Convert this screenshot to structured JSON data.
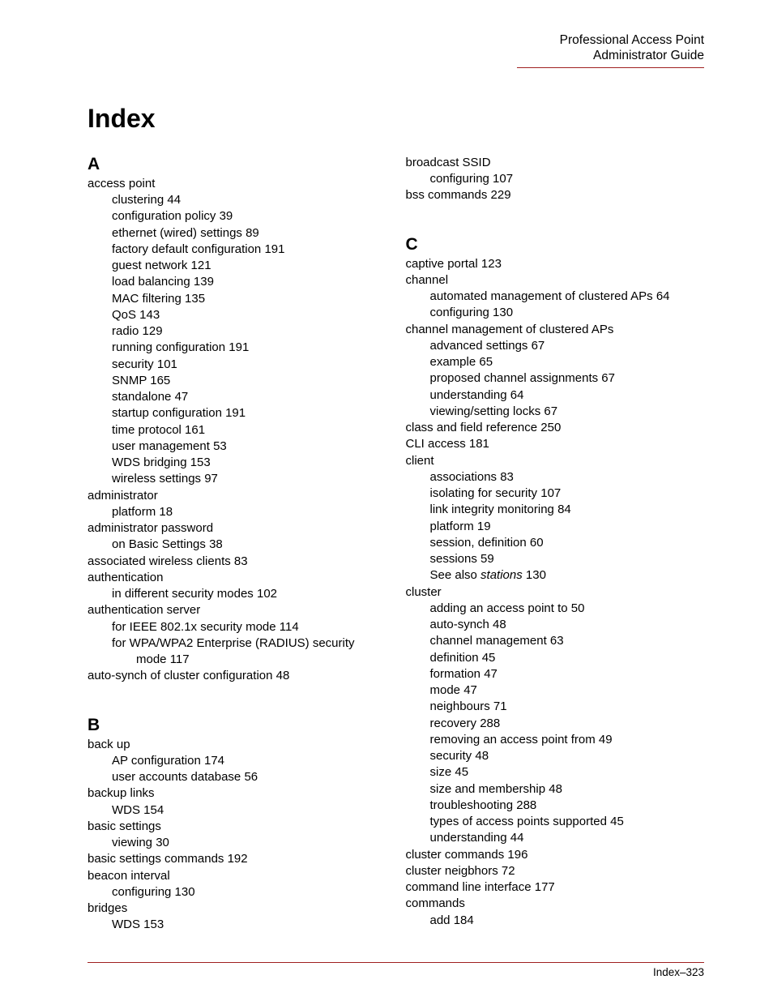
{
  "header": {
    "line1": "Professional Access Point",
    "line2": "Administrator Guide"
  },
  "title": "Index",
  "footer": "Index–323",
  "colors": {
    "rule": "#a02020",
    "text": "#000000",
    "background": "#ffffff"
  },
  "typography": {
    "body_font": "Arial",
    "title_fontsize_pt": 24,
    "letter_fontsize_pt": 16,
    "entry_fontsize_pt": 11,
    "footer_fontsize_pt": 10
  },
  "columns": [
    {
      "items": [
        {
          "type": "letter",
          "text": "A",
          "first": true
        },
        {
          "type": "entry",
          "level": 0,
          "text": "access point"
        },
        {
          "type": "entry",
          "level": 1,
          "text": "clustering",
          "page": "44"
        },
        {
          "type": "entry",
          "level": 1,
          "text": "configuration policy",
          "page": "39"
        },
        {
          "type": "entry",
          "level": 1,
          "text": "ethernet (wired) settings",
          "page": "89"
        },
        {
          "type": "entry",
          "level": 1,
          "text": "factory default configuration",
          "page": "191"
        },
        {
          "type": "entry",
          "level": 1,
          "text": "guest network",
          "page": "121"
        },
        {
          "type": "entry",
          "level": 1,
          "text": "load balancing",
          "page": "139"
        },
        {
          "type": "entry",
          "level": 1,
          "text": "MAC filtering",
          "page": "135"
        },
        {
          "type": "entry",
          "level": 1,
          "text": "QoS",
          "page": "143"
        },
        {
          "type": "entry",
          "level": 1,
          "text": "radio",
          "page": "129"
        },
        {
          "type": "entry",
          "level": 1,
          "text": "running configuration",
          "page": "191"
        },
        {
          "type": "entry",
          "level": 1,
          "text": "security",
          "page": "101"
        },
        {
          "type": "entry",
          "level": 1,
          "text": "SNMP",
          "page": "165"
        },
        {
          "type": "entry",
          "level": 1,
          "text": "standalone",
          "page": "47"
        },
        {
          "type": "entry",
          "level": 1,
          "text": "startup configuration",
          "page": "191"
        },
        {
          "type": "entry",
          "level": 1,
          "text": "time protocol",
          "page": "161"
        },
        {
          "type": "entry",
          "level": 1,
          "text": "user management",
          "page": "53"
        },
        {
          "type": "entry",
          "level": 1,
          "text": "WDS bridging",
          "page": "153"
        },
        {
          "type": "entry",
          "level": 1,
          "text": "wireless settings",
          "page": "97"
        },
        {
          "type": "entry",
          "level": 0,
          "text": "administrator"
        },
        {
          "type": "entry",
          "level": 1,
          "text": "platform",
          "page": "18"
        },
        {
          "type": "entry",
          "level": 0,
          "text": "administrator password"
        },
        {
          "type": "entry",
          "level": 1,
          "text": "on Basic Settings",
          "page": "38"
        },
        {
          "type": "entry",
          "level": 0,
          "text": "associated wireless clients",
          "page": "83"
        },
        {
          "type": "entry",
          "level": 0,
          "text": "authentication"
        },
        {
          "type": "entry",
          "level": 1,
          "text": "in different security modes",
          "page": "102"
        },
        {
          "type": "entry",
          "level": 0,
          "text": "authentication server"
        },
        {
          "type": "entry",
          "level": 1,
          "text": "for IEEE 802.1x security mode",
          "page": "114"
        },
        {
          "type": "entry",
          "level": 1,
          "text": "for WPA/WPA2 Enterprise (RADIUS) security"
        },
        {
          "type": "entry",
          "level": 2,
          "text": "mode",
          "page": "117"
        },
        {
          "type": "entry",
          "level": 0,
          "text": "auto-synch of cluster configuration",
          "page": "48"
        },
        {
          "type": "spacer"
        },
        {
          "type": "letter",
          "text": "B"
        },
        {
          "type": "entry",
          "level": 0,
          "text": "back up"
        },
        {
          "type": "entry",
          "level": 1,
          "text": "AP configuration",
          "page": "174"
        },
        {
          "type": "entry",
          "level": 1,
          "text": "user accounts database",
          "page": "56"
        },
        {
          "type": "entry",
          "level": 0,
          "text": "backup links"
        },
        {
          "type": "entry",
          "level": 1,
          "text": "WDS",
          "page": "154"
        },
        {
          "type": "entry",
          "level": 0,
          "text": "basic settings"
        },
        {
          "type": "entry",
          "level": 1,
          "text": "viewing",
          "page": "30"
        },
        {
          "type": "entry",
          "level": 0,
          "text": "basic settings commands",
          "page": "192"
        },
        {
          "type": "entry",
          "level": 0,
          "text": "beacon interval"
        },
        {
          "type": "entry",
          "level": 1,
          "text": "configuring",
          "page": "130"
        },
        {
          "type": "entry",
          "level": 0,
          "text": "bridges"
        },
        {
          "type": "entry",
          "level": 1,
          "text": "WDS",
          "page": "153"
        }
      ]
    },
    {
      "items": [
        {
          "type": "entry",
          "level": 0,
          "text": "broadcast SSID"
        },
        {
          "type": "entry",
          "level": 1,
          "text": "configuring",
          "page": "107"
        },
        {
          "type": "entry",
          "level": 0,
          "text": "bss commands",
          "page": "229"
        },
        {
          "type": "spacer"
        },
        {
          "type": "letter",
          "text": "C"
        },
        {
          "type": "entry",
          "level": 0,
          "text": "captive portal",
          "page": "123"
        },
        {
          "type": "entry",
          "level": 0,
          "text": "channel"
        },
        {
          "type": "entry",
          "level": 1,
          "text": "automated management of clustered APs",
          "page": "64"
        },
        {
          "type": "entry",
          "level": 1,
          "text": "configuring",
          "page": "130"
        },
        {
          "type": "entry",
          "level": 0,
          "text": "channel management of clustered APs"
        },
        {
          "type": "entry",
          "level": 1,
          "text": "advanced settings",
          "page": "67"
        },
        {
          "type": "entry",
          "level": 1,
          "text": "example",
          "page": "65"
        },
        {
          "type": "entry",
          "level": 1,
          "text": "proposed channel assignments",
          "page": "67"
        },
        {
          "type": "entry",
          "level": 1,
          "text": "understanding",
          "page": "64"
        },
        {
          "type": "entry",
          "level": 1,
          "text": "viewing/setting locks",
          "page": "67"
        },
        {
          "type": "entry",
          "level": 0,
          "text": "class and field reference",
          "page": "250"
        },
        {
          "type": "entry",
          "level": 0,
          "text": "CLI access",
          "page": "181"
        },
        {
          "type": "entry",
          "level": 0,
          "text": "client"
        },
        {
          "type": "entry",
          "level": 1,
          "text": "associations",
          "page": "83"
        },
        {
          "type": "entry",
          "level": 1,
          "text": "isolating for security",
          "page": "107"
        },
        {
          "type": "entry",
          "level": 1,
          "text": "link integrity monitoring",
          "page": "84"
        },
        {
          "type": "entry",
          "level": 1,
          "text": "platform",
          "page": "19"
        },
        {
          "type": "entry",
          "level": 1,
          "text": "session, definition",
          "page": "60"
        },
        {
          "type": "entry",
          "level": 1,
          "text": "sessions",
          "page": "59"
        },
        {
          "type": "entry",
          "level": 1,
          "see": "See also",
          "seeTarget": "stations",
          "page": "130"
        },
        {
          "type": "entry",
          "level": 0,
          "text": "cluster"
        },
        {
          "type": "entry",
          "level": 1,
          "text": "adding an access point to",
          "page": "50"
        },
        {
          "type": "entry",
          "level": 1,
          "text": "auto-synch",
          "page": "48"
        },
        {
          "type": "entry",
          "level": 1,
          "text": "channel management",
          "page": "63"
        },
        {
          "type": "entry",
          "level": 1,
          "text": "definition",
          "page": "45"
        },
        {
          "type": "entry",
          "level": 1,
          "text": "formation",
          "page": "47"
        },
        {
          "type": "entry",
          "level": 1,
          "text": "mode",
          "page": "47"
        },
        {
          "type": "entry",
          "level": 1,
          "text": "neighbours",
          "page": "71"
        },
        {
          "type": "entry",
          "level": 1,
          "text": "recovery",
          "page": "288"
        },
        {
          "type": "entry",
          "level": 1,
          "text": "removing an access point from",
          "page": "49"
        },
        {
          "type": "entry",
          "level": 1,
          "text": "security",
          "page": "48"
        },
        {
          "type": "entry",
          "level": 1,
          "text": "size",
          "page": "45"
        },
        {
          "type": "entry",
          "level": 1,
          "text": "size and membership",
          "page": "48"
        },
        {
          "type": "entry",
          "level": 1,
          "text": "troubleshooting",
          "page": "288"
        },
        {
          "type": "entry",
          "level": 1,
          "text": "types of access points supported",
          "page": "45"
        },
        {
          "type": "entry",
          "level": 1,
          "text": "understanding",
          "page": "44"
        },
        {
          "type": "entry",
          "level": 0,
          "text": "cluster commands",
          "page": "196"
        },
        {
          "type": "entry",
          "level": 0,
          "text": "cluster neigbhors",
          "page": "72"
        },
        {
          "type": "entry",
          "level": 0,
          "text": "command line interface",
          "page": "177"
        },
        {
          "type": "entry",
          "level": 0,
          "text": "commands"
        },
        {
          "type": "entry",
          "level": 1,
          "text": "add",
          "page": "184"
        }
      ]
    }
  ]
}
